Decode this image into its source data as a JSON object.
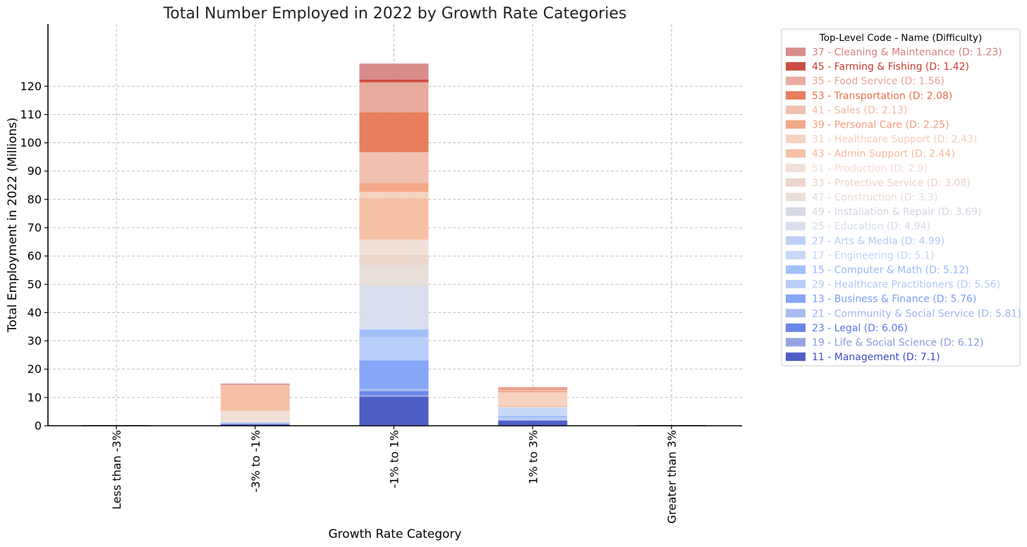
{
  "chart_data": {
    "type": "bar",
    "stacked": true,
    "title": "Total Number Employed in 2022 by Growth Rate Categories",
    "xlabel": "Growth Rate Category",
    "ylabel": "Total Employment in 2022 (Millions)",
    "categories": [
      "Less than -3%",
      "-3% to -1%",
      "-1% to 1%",
      "1% to 3%",
      "Greater than 3%"
    ],
    "ylim": [
      0,
      142
    ],
    "yticks": [
      0,
      10,
      20,
      30,
      40,
      50,
      60,
      70,
      80,
      90,
      100,
      110,
      120
    ],
    "grid": true,
    "legend": {
      "title": "Top-Level Code - Name (Difficulty)",
      "position": "outside-right",
      "text_colored": true
    },
    "series": [
      {
        "name": "11 - Management (D: 7.1)",
        "color": "#3b4cc0",
        "values": [
          0,
          0.5,
          10.2,
          1.8,
          0
        ]
      },
      {
        "name": "19 - Life & Social Science (D: 6.12)",
        "color": "#8a9ade",
        "values": [
          0,
          0,
          0.6,
          0.2,
          0
        ]
      },
      {
        "name": "23 - Legal (D: 6.06)",
        "color": "#5a7ae3",
        "values": [
          0,
          0,
          1.4,
          0,
          0
        ]
      },
      {
        "name": "21 - Community & Social Service (D: 5.81)",
        "color": "#a0b4ef",
        "values": [
          0,
          0.3,
          0.9,
          0.2,
          0
        ]
      },
      {
        "name": "13 - Business & Finance (D: 5.76)",
        "color": "#7a9cf6",
        "values": [
          0,
          0.2,
          10.0,
          0,
          0
        ]
      },
      {
        "name": "29 - Healthcare Practitioners (D: 5.56)",
        "color": "#b2c9f9",
        "values": [
          0,
          0,
          8.2,
          0.6,
          0
        ]
      },
      {
        "name": "15 - Computer & Math (D: 5.12)",
        "color": "#97b9f9",
        "values": [
          0,
          0,
          2.7,
          0.7,
          0
        ]
      },
      {
        "name": "17 - Engineering (D: 5.1)",
        "color": "#c3d4f6",
        "values": [
          0,
          0,
          0.2,
          2.8,
          0
        ]
      },
      {
        "name": "27 - Arts & Media (D: 4.99)",
        "color": "#b4cbf3",
        "values": [
          0,
          0,
          0.1,
          0.1,
          0
        ]
      },
      {
        "name": "25 - Education (D: 4.94)",
        "color": "#d5dcea",
        "values": [
          0,
          0,
          14.9,
          0.2,
          0
        ]
      },
      {
        "name": "49 - Installation & Repair (D: 3.69)",
        "color": "#d2d5de",
        "values": [
          0,
          0.3,
          0.4,
          0,
          0
        ]
      },
      {
        "name": "47 - Construction (D: 3.3)",
        "color": "#e6dbd5",
        "values": [
          0,
          0.2,
          7.2,
          0,
          0
        ]
      },
      {
        "name": "33 - Protective Service (D: 3.08)",
        "color": "#ebd2c6",
        "values": [
          0,
          0,
          3.5,
          0.1,
          0
        ]
      },
      {
        "name": "51 - Production (D: 2.9)",
        "color": "#f0ddd3",
        "values": [
          0,
          3.8,
          5.5,
          0,
          0
        ]
      },
      {
        "name": "43 - Admin Support (D: 2.44)",
        "color": "#f5b99b",
        "values": [
          0,
          9.0,
          14.6,
          0.5,
          0
        ]
      },
      {
        "name": "31 - Healthcare Support (D: 2.43)",
        "color": "#f5cdb9",
        "values": [
          0,
          0,
          2.3,
          4.6,
          0
        ]
      },
      {
        "name": "39 - Personal Care (D: 2.25)",
        "color": "#f19d7c",
        "values": [
          0,
          0,
          3.1,
          0.6,
          0
        ]
      },
      {
        "name": "41 - Sales (D: 2.13)",
        "color": "#eeb9a7",
        "values": [
          0,
          0,
          10.9,
          0.4,
          0
        ]
      },
      {
        "name": "53 - Transportation (D: 2.08)",
        "color": "#e6704b",
        "values": [
          0,
          0,
          14.1,
          0.3,
          0
        ]
      },
      {
        "name": "35 - Food Service (D: 1.56)",
        "color": "#e6a296",
        "values": [
          0,
          0.2,
          10.6,
          0.6,
          0
        ]
      },
      {
        "name": "45 - Farming & Fishing (D: 1.42)",
        "color": "#c93a2e",
        "values": [
          0,
          0,
          1.0,
          0,
          0
        ]
      },
      {
        "name": "37 - Cleaning & Maintenance (D: 1.23)",
        "color": "#d58080",
        "values": [
          0,
          0.4,
          5.6,
          0,
          0
        ]
      }
    ]
  }
}
